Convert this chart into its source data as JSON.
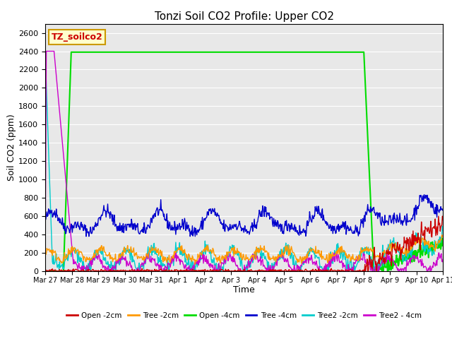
{
  "title": "Tonzi Soil CO2 Profile: Upper CO2",
  "xlabel": "Time",
  "ylabel": "Soil CO2 (ppm)",
  "ylim": [
    0,
    2700
  ],
  "yticks": [
    0,
    200,
    400,
    600,
    800,
    1000,
    1200,
    1400,
    1600,
    1800,
    2000,
    2200,
    2400,
    2600
  ],
  "bg_color": "#e8e8e8",
  "legend_label": "TZ_soilco2",
  "tick_labels": [
    "Mar 27",
    "Mar 28",
    "Mar 29",
    "Mar 30",
    "Mar 31",
    "Apr 1",
    "Apr 2",
    "Apr 3",
    "Apr 4",
    "Apr 5",
    "Apr 6",
    "Apr 7",
    "Apr 8",
    "Apr 9",
    "Apr 10",
    "Apr 11"
  ],
  "series_colors": {
    "Open_2cm": "#cc0000",
    "Tree_2cm": "#ff9900",
    "Open_4cm": "#00dd00",
    "Tree_4cm": "#0000cc",
    "Tree2_2cm": "#00cccc",
    "Tree2_4cm": "#cc00cc"
  },
  "series_labels": [
    "Open -2cm",
    "Tree -2cm",
    "Open -4cm",
    "Tree -4cm",
    "Tree2 -2cm",
    "Tree2 - 4cm"
  ]
}
